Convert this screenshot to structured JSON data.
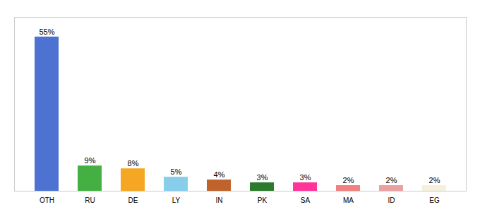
{
  "chart_data": {
    "type": "bar",
    "categories": [
      "OTH",
      "RU",
      "DE",
      "LY",
      "IN",
      "PK",
      "SA",
      "MA",
      "ID",
      "EG"
    ],
    "values": [
      55,
      9,
      8,
      5,
      4,
      3,
      3,
      2,
      2,
      2
    ],
    "value_labels": [
      "55%",
      "9%",
      "8%",
      "5%",
      "4%",
      "3%",
      "3%",
      "2%",
      "2%",
      "2%"
    ],
    "colors": [
      "#4d72d1",
      "#44b044",
      "#f5a623",
      "#87ceeb",
      "#c0622b",
      "#2d7a2d",
      "#ff3399",
      "#f08080",
      "#e8a0a0",
      "#f5f0dc"
    ],
    "ylim": [
      0,
      62
    ],
    "data_labels": true,
    "tick_labels": "x"
  }
}
